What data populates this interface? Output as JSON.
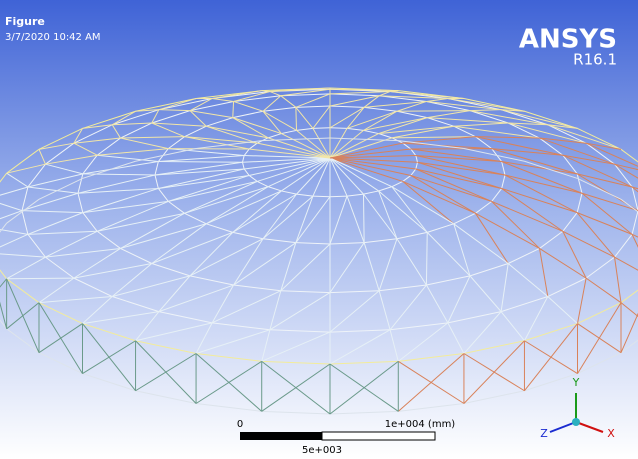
{
  "header": {
    "title": "Figure",
    "timestamp": "3/7/2020 10:42 AM"
  },
  "logo": {
    "brand": "ANSYS",
    "version": "R16.1"
  },
  "scale_bar": {
    "start_label": "0",
    "end_label": "1e+004 (mm)",
    "mid_label": "5e+003"
  },
  "triad": {
    "y": "Y",
    "z": "Z",
    "x": "X"
  }
}
